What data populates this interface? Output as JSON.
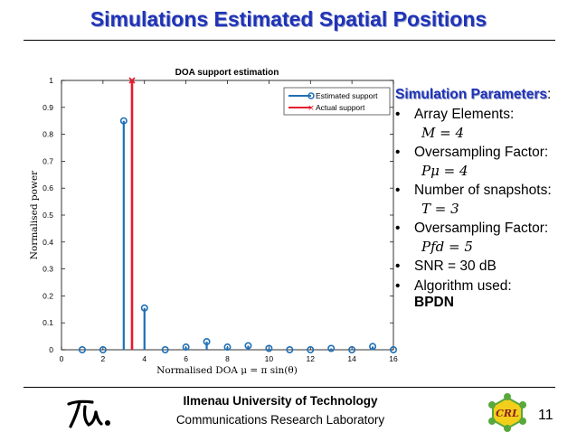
{
  "slide": {
    "title": "Simulations Estimated Spatial Positions",
    "page_number": "11"
  },
  "parameters": {
    "heading": "Simulation Parameters",
    "heading_suffix": ":",
    "items": [
      {
        "label": "Array Elements:",
        "formula": "M = 4"
      },
      {
        "label": "Oversampling Factor:",
        "formula": "Pμ = 4"
      },
      {
        "label": "Number of snapshots:",
        "formula": "T = 3"
      },
      {
        "label": "Oversampling Factor:",
        "formula": "Pfd = 5"
      },
      {
        "label": "SNR = 30 dB"
      },
      {
        "label": "Algorithm used:",
        "value": "BPDN"
      }
    ]
  },
  "footer": {
    "university": "Ilmenau University of Technology",
    "lab": "Communications Research Laboratory",
    "logo_left_text": "tu",
    "logo_right_text": "CRL"
  },
  "chart_data": {
    "type": "stem",
    "title": "DOA support estimation",
    "xlabel": "Normalised DOA μ = π sin(θ)",
    "ylabel": "Normalised power",
    "xlim": [
      0,
      16
    ],
    "ylim": [
      0,
      1
    ],
    "xticks": [
      0,
      2,
      4,
      6,
      8,
      10,
      12,
      14,
      16
    ],
    "yticks": [
      0,
      0.1,
      0.2,
      0.3,
      0.4,
      0.5,
      0.6,
      0.7,
      0.8,
      0.9,
      1
    ],
    "grid": false,
    "legend_position": "top-right",
    "series": [
      {
        "name": "Estimated support",
        "color": "#1f6fb5",
        "marker": "circle",
        "x": [
          1,
          2,
          3,
          4,
          5,
          6,
          7,
          8,
          9,
          10,
          11,
          12,
          13,
          14,
          15,
          16
        ],
        "y": [
          0.0,
          0.0,
          0.85,
          0.155,
          0.0,
          0.01,
          0.03,
          0.01,
          0.015,
          0.005,
          0.0,
          0.0,
          0.005,
          0.0,
          0.012,
          0.0
        ]
      },
      {
        "name": "Actual support",
        "color": "#e8192c",
        "marker": "x",
        "x": [
          3.4
        ],
        "y": [
          1.0
        ]
      }
    ]
  }
}
